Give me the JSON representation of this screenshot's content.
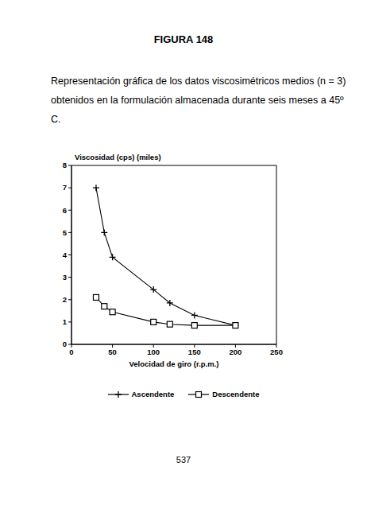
{
  "chart_data": {
    "type": "line",
    "title": "FIGURA 148",
    "subtitle": "Representación gráfica de los datos viscosimétricos medios (n = 3) obtenidos en la formulación almacenada durante seis meses a 45º C.",
    "annotations": [
      "537"
    ],
    "x_label": "Velocidad de giro (r.p.m.)",
    "y_label": "Viscosidad (cps) (miles)",
    "x": [
      30,
      40,
      50,
      100,
      120,
      150,
      200
    ],
    "series": [
      {
        "name": "Ascendente",
        "color": "#000000",
        "marker": "plus",
        "values": [
          7.0,
          5.0,
          3.9,
          2.45,
          1.85,
          1.3,
          0.85
        ]
      },
      {
        "name": "Descendente",
        "color": "#000000",
        "marker": "square",
        "values": [
          2.1,
          1.7,
          1.45,
          1.0,
          0.9,
          0.85,
          0.85
        ]
      }
    ],
    "xlim": [
      0,
      250
    ],
    "xticks": [
      0,
      50,
      100,
      150,
      200,
      250
    ],
    "ylim": [
      0,
      8
    ],
    "yticks": [
      0,
      1,
      2,
      3,
      4,
      5,
      6,
      7,
      8
    ],
    "grid": false,
    "legend": "bottom"
  }
}
